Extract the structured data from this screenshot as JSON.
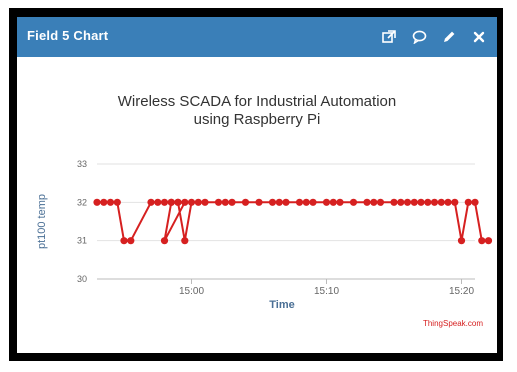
{
  "header": {
    "title": "Field 5 Chart",
    "icons": [
      "external-link-icon",
      "comment-icon",
      "pencil-icon",
      "close-icon"
    ],
    "background": "#3a7fb8"
  },
  "credit": "ThingSpeak.com",
  "chart_data": {
    "type": "line",
    "title": "Wireless SCADA for Industrial Automation",
    "subtitle": "using Raspberry Pi",
    "xlabel": "Time",
    "ylabel": "pt100 temp",
    "ylim": [
      30,
      33
    ],
    "yticks": [
      30,
      31,
      32,
      33
    ],
    "xlim": [
      "14:53",
      "15:21"
    ],
    "xticks": [
      "15:00",
      "15:10",
      "15:20"
    ],
    "grid": true,
    "legend": "none",
    "series": [
      {
        "color": "#d62020",
        "points": [
          [
            "14:53",
            32
          ],
          [
            "14:53:30",
            32
          ],
          [
            "14:54",
            32
          ],
          [
            "14:54:30",
            32
          ],
          [
            "14:55",
            31
          ],
          [
            "14:55:30",
            31
          ],
          [
            "14:57",
            32
          ],
          [
            "14:57:30",
            32
          ],
          [
            "14:58",
            32
          ],
          [
            "14:58:30",
            32
          ],
          [
            "14:59",
            32
          ],
          [
            "14:59:30",
            32
          ],
          [
            "14:58",
            31
          ],
          [
            "14:58:30",
            32
          ],
          [
            "14:59",
            32
          ],
          [
            "14:59:30",
            31
          ],
          [
            "15:00",
            32
          ],
          [
            "15:00:30",
            32
          ],
          [
            "15:01",
            32
          ],
          [
            "15:02",
            32
          ],
          [
            "15:02:30",
            32
          ],
          [
            "15:03",
            32
          ],
          [
            "15:04",
            32
          ],
          [
            "15:05",
            32
          ],
          [
            "15:06",
            32
          ],
          [
            "15:06:30",
            32
          ],
          [
            "15:07",
            32
          ],
          [
            "15:08",
            32
          ],
          [
            "15:08:30",
            32
          ],
          [
            "15:09",
            32
          ],
          [
            "15:10",
            32
          ],
          [
            "15:10:30",
            32
          ],
          [
            "15:11",
            32
          ],
          [
            "15:12",
            32
          ],
          [
            "15:13",
            32
          ],
          [
            "15:13:30",
            32
          ],
          [
            "15:14",
            32
          ],
          [
            "15:15",
            32
          ],
          [
            "15:15:30",
            32
          ],
          [
            "15:16",
            32
          ],
          [
            "15:16:30",
            32
          ],
          [
            "15:17",
            32
          ],
          [
            "15:17:30",
            32
          ],
          [
            "15:18",
            32
          ],
          [
            "15:18:30",
            32
          ],
          [
            "15:19",
            32
          ],
          [
            "15:19:30",
            32
          ],
          [
            "15:20",
            31
          ],
          [
            "15:20:30",
            32
          ],
          [
            "15:21",
            32
          ],
          [
            "15:21:30",
            31
          ],
          [
            "15:22",
            31
          ]
        ]
      }
    ]
  }
}
